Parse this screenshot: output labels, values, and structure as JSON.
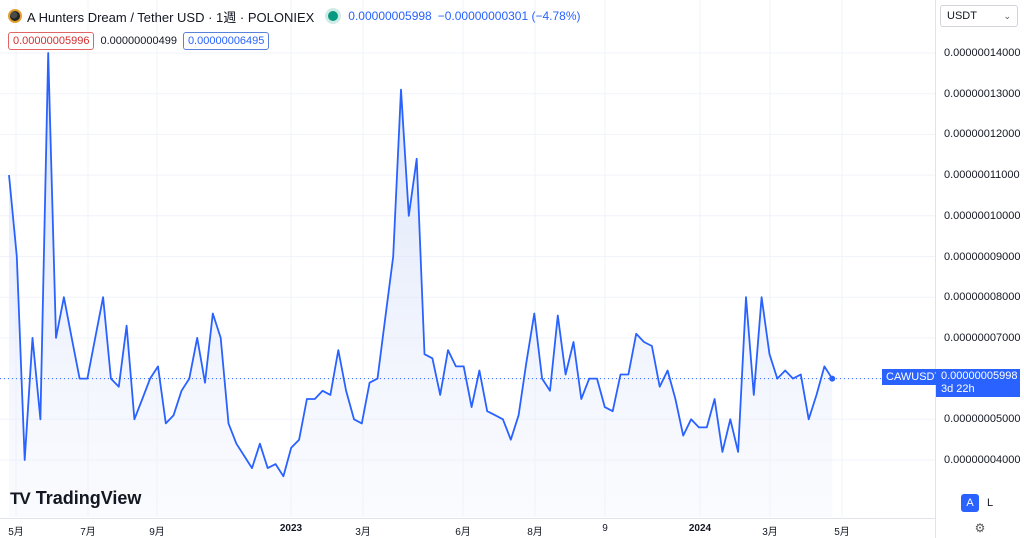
{
  "header": {
    "title": "A Hunters Dream / Tether USD · 1週 · POLONIEX",
    "last_price": "0.00000005998",
    "change": "−0.00000000301 (−4.78%)"
  },
  "ohlc": {
    "first": "0.00000005996",
    "second": "0.00000000499",
    "third": "0.00000006495"
  },
  "currency_select": {
    "value": "USDT"
  },
  "y_axis": {
    "labels": [
      "0.00000014000",
      "0.00000013000",
      "0.00000012000",
      "0.00000011000",
      "0.00000010000",
      "0.00000009000",
      "0.00000008000",
      "0.00000007000",
      "0.00000005000",
      "0.00000004000"
    ]
  },
  "x_axis": {
    "labels": [
      {
        "text": "5月",
        "bold": false
      },
      {
        "text": "7月",
        "bold": false
      },
      {
        "text": "9月",
        "bold": false
      },
      {
        "text": "2023",
        "bold": true
      },
      {
        "text": "3月",
        "bold": false
      },
      {
        "text": "6月",
        "bold": false
      },
      {
        "text": "8月",
        "bold": false
      },
      {
        "text": "9",
        "bold": false
      },
      {
        "text": "2024",
        "bold": true
      },
      {
        "text": "3月",
        "bold": false
      },
      {
        "text": "5月",
        "bold": false
      }
    ]
  },
  "last_price_tag": {
    "symbol": "CAWUSDT",
    "price": "0.00000005998",
    "countdown": "3d 22h"
  },
  "logo": {
    "mark": "TV",
    "text": "TradingView"
  },
  "scale_buttons": {
    "auto": "A",
    "log": "L"
  },
  "colors": {
    "line": "#2962ff",
    "fill": "#e8eefc",
    "tag": "#2962ff",
    "live": "#089981"
  },
  "chart_data": {
    "type": "area",
    "series": [
      {
        "values": [
          1.1e-07,
          9e-08,
          4e-08,
          7e-08,
          5e-08,
          1.4e-07,
          7e-08,
          8e-08,
          7e-08,
          6e-08,
          6e-08,
          7e-08,
          8e-08,
          6e-08,
          5.8e-08,
          7.3e-08,
          5e-08,
          5.5e-08,
          6e-08,
          6.3e-08,
          4.9e-08,
          5.1e-08,
          5.7e-08,
          6e-08,
          7e-08,
          5.9e-08,
          7.6e-08,
          7e-08,
          4.9e-08,
          4.4e-08,
          4.1e-08,
          3.8e-08,
          4.4e-08,
          3.8e-08,
          3.9e-08,
          3.6e-08,
          4.3e-08,
          4.5e-08,
          5.5e-08,
          5.5e-08,
          5.7e-08,
          5.6e-08,
          6.7e-08,
          5.7e-08,
          5e-08,
          4.9e-08,
          5.9e-08,
          6e-08,
          7.5e-08,
          9e-08,
          1.31e-07,
          1e-07,
          1.14e-07,
          6.6e-08,
          6.5e-08,
          5.6e-08,
          6.7e-08,
          6.3e-08,
          6.3e-08,
          5.3e-08,
          6.2e-08,
          5.2e-08,
          5.1e-08,
          5e-08,
          4.5e-08,
          5.1e-08,
          6.4e-08,
          7.6e-08,
          6e-08,
          5.7e-08,
          7.55e-08,
          6.1e-08,
          6.9e-08,
          5.5e-08,
          6e-08,
          6e-08,
          5.3e-08,
          5.2e-08,
          6.1e-08,
          6.1e-08,
          7.1e-08,
          6.9e-08,
          6.8e-08,
          5.8e-08,
          6.2e-08,
          5.5e-08,
          4.6e-08,
          5e-08,
          4.8e-08,
          4.8e-08,
          5.5e-08,
          4.2e-08,
          5e-08,
          4.2e-08,
          8e-08,
          5.6e-08,
          8e-08,
          6.6e-08,
          6e-08,
          6.2e-08,
          6e-08,
          6.1e-08,
          5e-08,
          5.6e-08,
          6.3e-08,
          5.998e-08
        ]
      }
    ],
    "ylim": [
      3e-08,
      1.45e-07
    ],
    "grid": true
  }
}
